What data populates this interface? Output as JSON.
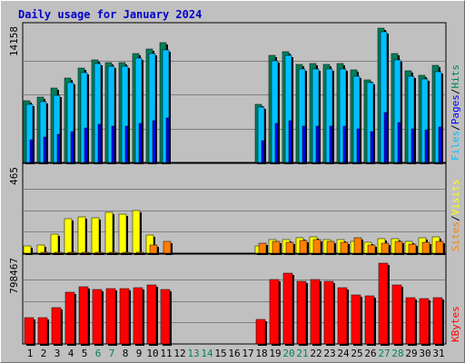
{
  "title": "Daily usage for January 2024",
  "colors": {
    "hits": "#00805c",
    "files": "#00c0ff",
    "pages": "#0000ff",
    "visits": "#ffff00",
    "sites": "#ff8000",
    "kbytes": "#ff0000",
    "weekend_day": "#00805c",
    "weekday": "#000000"
  },
  "chart_data": [
    {
      "type": "bar",
      "name": "hits-files-pages",
      "ymax_label": "14158",
      "ylim": [
        0,
        14158
      ],
      "legend": [
        "Hits",
        "Files",
        "Pages"
      ],
      "legend_separator": "/",
      "series": [
        {
          "name": "Hits",
          "values": [
            6400,
            6800,
            7700,
            8800,
            9800,
            10700,
            10400,
            10400,
            11300,
            11800,
            12500,
            0,
            0,
            0,
            0,
            0,
            0,
            6000,
            11100,
            11500,
            10200,
            10300,
            10200,
            10300,
            9600,
            8600,
            14000,
            11300,
            9500,
            9100,
            10100
          ]
        },
        {
          "name": "Files",
          "values": [
            6000,
            6300,
            7000,
            8300,
            9300,
            10300,
            10000,
            10000,
            10900,
            11300,
            11700,
            0,
            0,
            0,
            0,
            0,
            0,
            5800,
            10600,
            11100,
            9700,
            9700,
            9700,
            9700,
            9000,
            8300,
            13600,
            10700,
            9000,
            8700,
            9400
          ]
        },
        {
          "name": "Pages",
          "values": [
            2400,
            2600,
            2900,
            3200,
            3600,
            4000,
            3800,
            3800,
            4100,
            4300,
            4600,
            0,
            0,
            0,
            0,
            0,
            0,
            2300,
            4100,
            4300,
            3800,
            3800,
            3800,
            3800,
            3500,
            3200,
            5200,
            4200,
            3500,
            3400,
            3700
          ]
        }
      ]
    },
    {
      "type": "bar",
      "name": "visits-sites",
      "ymax_label": "465",
      "ylim": [
        0,
        465
      ],
      "legend": [
        "Visits",
        "Sites"
      ],
      "legend_separator": "/",
      "series": [
        {
          "name": "Visits",
          "values": [
            40,
            43,
            102,
            186,
            198,
            192,
            219,
            209,
            229,
            96,
            0,
            0,
            0,
            0,
            0,
            0,
            0,
            40,
            71,
            74,
            85,
            87,
            75,
            74,
            64,
            57,
            78,
            78,
            66,
            85,
            88
          ]
        },
        {
          "name": "Sites",
          "values": [
            2,
            3,
            5,
            4,
            3,
            3,
            5,
            3,
            5,
            42,
            66,
            0,
            0,
            0,
            0,
            0,
            0,
            55,
            63,
            61,
            70,
            72,
            64,
            59,
            81,
            44,
            54,
            64,
            49,
            59,
            64
          ]
        }
      ]
    },
    {
      "type": "bar",
      "name": "kbytes",
      "ymax_label": "798467",
      "ylim": [
        0,
        798467
      ],
      "legend": [
        "KBytes"
      ],
      "series": [
        {
          "name": "KBytes",
          "values": [
            240000,
            245000,
            335000,
            475000,
            530000,
            505000,
            515000,
            510000,
            525000,
            550000,
            505000,
            0,
            0,
            0,
            0,
            0,
            0,
            230000,
            600000,
            655000,
            580000,
            600000,
            580000,
            520000,
            450000,
            445000,
            750000,
            545000,
            430000,
            420000,
            425000
          ]
        }
      ]
    }
  ],
  "days": [
    "1",
    "2",
    "3",
    "4",
    "5",
    "6",
    "7",
    "8",
    "9",
    "10",
    "11",
    "12",
    "13",
    "14",
    "15",
    "16",
    "17",
    "18",
    "19",
    "20",
    "21",
    "22",
    "23",
    "24",
    "25",
    "26",
    "27",
    "28",
    "29",
    "30",
    "31"
  ],
  "weekend_days": [
    "6",
    "7",
    "13",
    "14",
    "20",
    "21",
    "27",
    "28"
  ]
}
